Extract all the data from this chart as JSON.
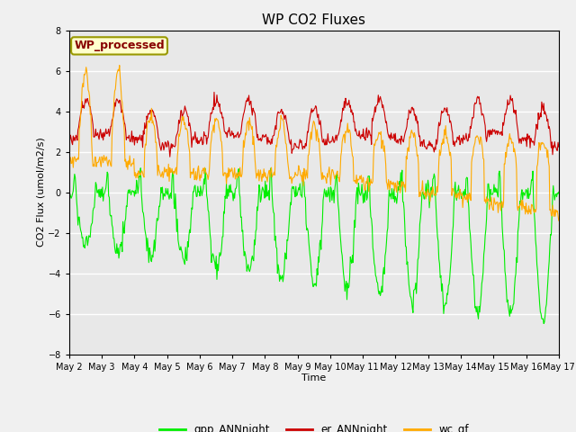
{
  "title": "WP CO2 Fluxes",
  "xlabel": "Time",
  "ylabel": "CO2 Flux (umol/m2/s)",
  "ylim": [
    -8,
    8
  ],
  "yticks": [
    -8,
    -6,
    -4,
    -2,
    0,
    2,
    4,
    6,
    8
  ],
  "xtick_labels": [
    "May 2",
    "May 3",
    "May 4",
    "May 5",
    "May 6",
    "May 7",
    "May 8",
    "May 9",
    "May 10",
    "May 11",
    "May 12",
    "May 13",
    "May 14",
    "May 15",
    "May 16",
    "May 17"
  ],
  "legend_entries": [
    "gpp_ANNnight",
    "er_ANNnight",
    "wc_gf"
  ],
  "line_colors": [
    "#00ee00",
    "#cc0000",
    "#ffaa00"
  ],
  "annotation_text": "WP_processed",
  "annotation_color": "#880000",
  "annotation_bg": "#ffffcc",
  "annotation_edge": "#999900",
  "bg_color": "#e8e8e8",
  "fig_bg_color": "#f0f0f0",
  "grid_color": "#ffffff",
  "n_days": 15,
  "points_per_day": 48
}
